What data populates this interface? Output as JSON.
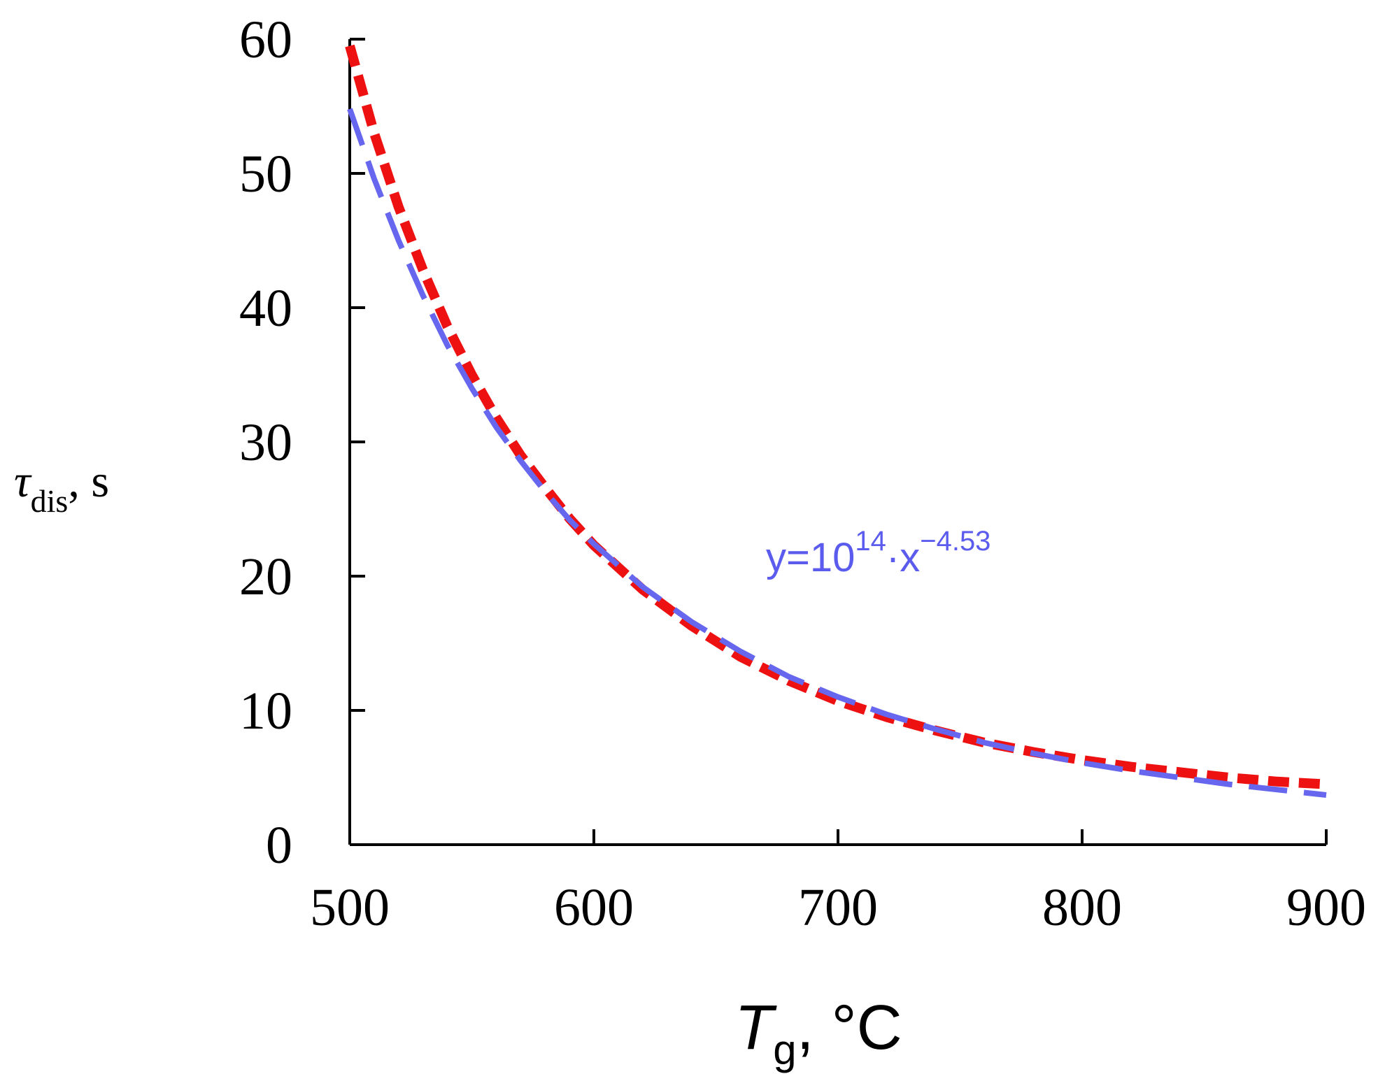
{
  "chart_data": {
    "type": "line",
    "x": [
      500,
      510,
      520,
      530,
      540,
      550,
      560,
      570,
      580,
      590,
      600,
      620,
      640,
      660,
      680,
      700,
      720,
      740,
      760,
      780,
      800,
      820,
      840,
      860,
      880,
      900
    ],
    "series": [
      {
        "values": [
          59.5,
          53.0,
          47.5,
          42.8,
          38.6,
          35.0,
          31.8,
          29.0,
          26.6,
          24.3,
          22.3,
          19.0,
          16.3,
          14.0,
          12.2,
          10.7,
          9.5,
          8.5,
          7.6,
          6.9,
          6.3,
          5.8,
          5.4,
          5.0,
          4.7,
          4.5
        ],
        "color": "#ee1111",
        "style": "short-dashed"
      },
      {
        "values": [
          54.8,
          49.6,
          45.0,
          40.9,
          37.2,
          34.0,
          31.1,
          28.6,
          26.3,
          24.2,
          22.4,
          19.2,
          16.6,
          14.4,
          12.5,
          11.0,
          9.7,
          8.6,
          7.6,
          6.8,
          6.1,
          5.5,
          5.0,
          4.5,
          4.1,
          3.7
        ],
        "color": "#6666ee",
        "style": "long-dashed"
      }
    ],
    "xlim": [
      500,
      900
    ],
    "ylim": [
      0,
      60
    ],
    "xticks": [
      "500",
      "600",
      "700",
      "800",
      "900"
    ],
    "yticks": [
      "0",
      "10",
      "20",
      "30",
      "40",
      "50",
      "60"
    ],
    "xlabel": {
      "main": "T",
      "sub": "g",
      "unit": ", °C"
    },
    "ylabel": {
      "main": "τ",
      "sub": "dis",
      "unit": ", s"
    },
    "annotation": {
      "prefix": "y=10",
      "exp1": "14",
      "middle": "·x",
      "exp2": "−4.53",
      "color": "#5b5bee"
    },
    "grid": false
  }
}
